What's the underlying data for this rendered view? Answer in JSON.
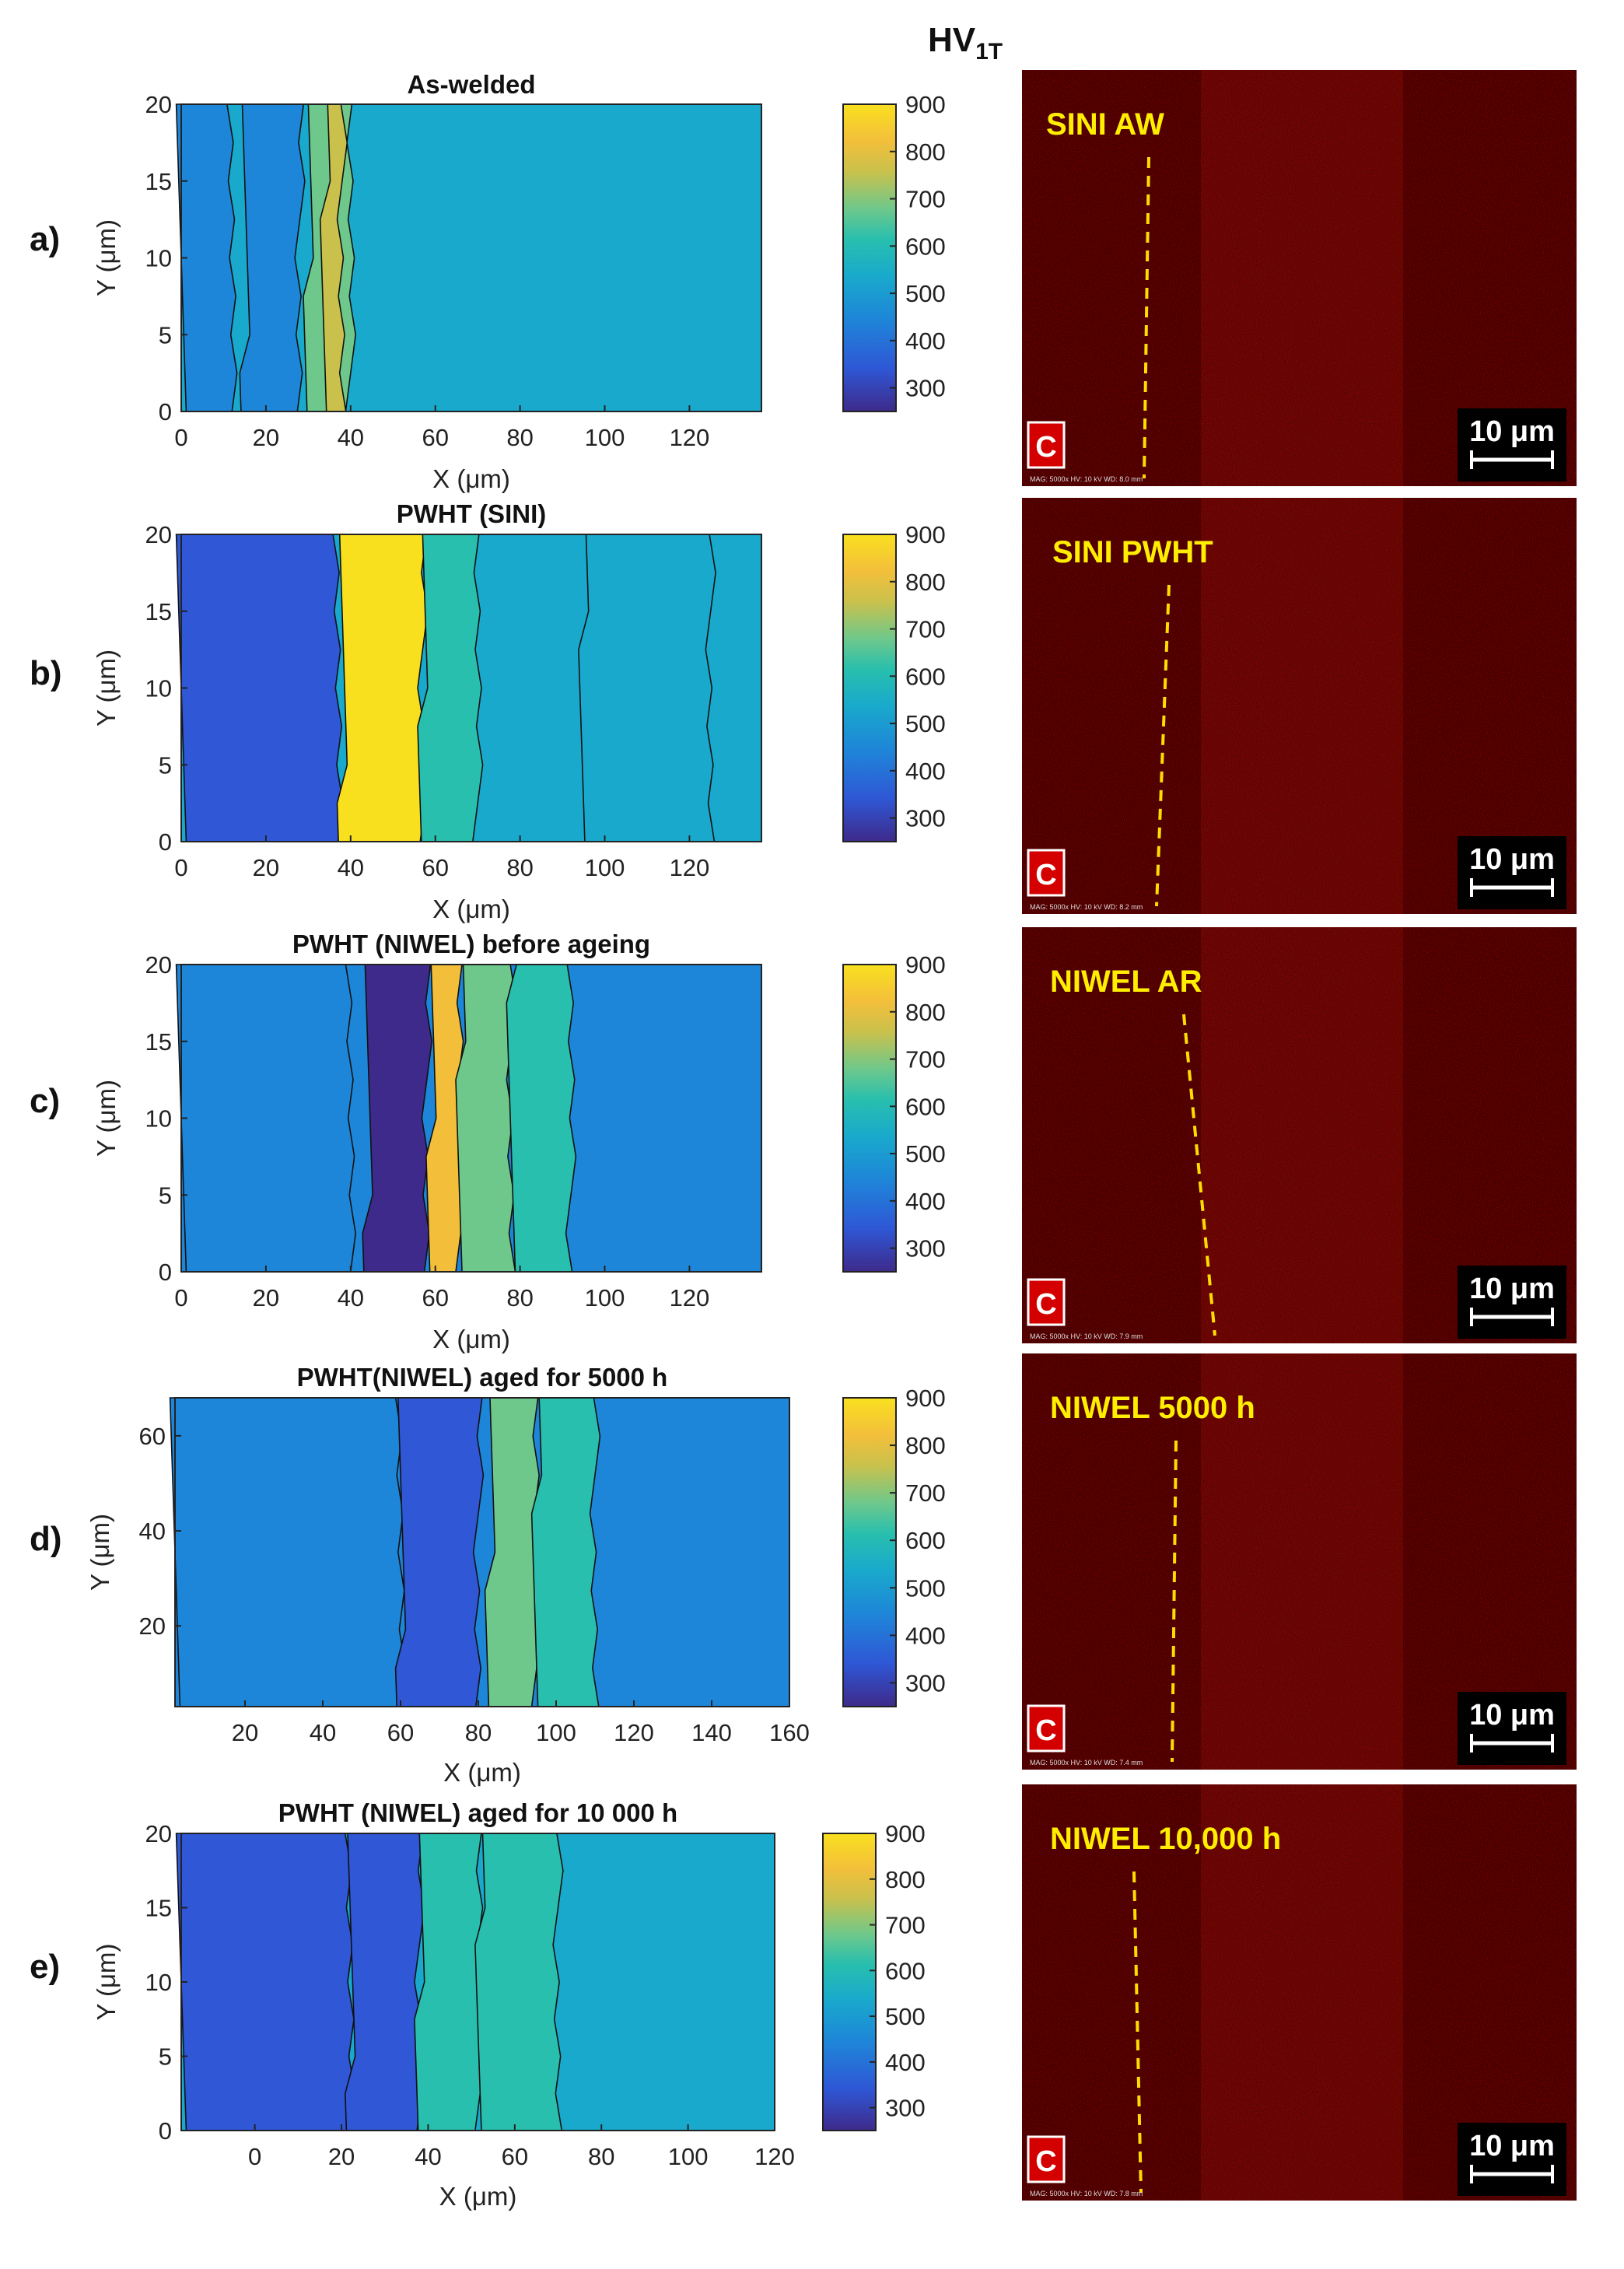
{
  "figure": {
    "colorbar_title": "HV",
    "colorbar_title_sub": "1T",
    "colormap": [
      "#3e2a8a",
      "#2f57d6",
      "#1e86d8",
      "#19a9cc",
      "#28bfae",
      "#6ec88b",
      "#c9c14c",
      "#f3bf3b",
      "#f9e01f"
    ],
    "scale_bar": "10 μm",
    "em_element": "C",
    "em_meta": [
      "MAG: 5000x   HV: 10 kV   WD: 8.0 mm",
      "MAG: 5000x   HV: 10 kV   WD: 8.2 mm",
      "MAG: 5000x   HV: 10 kV   WD: 7.9 mm",
      "MAG: 5000x   HV: 10 kV   WD: 7.4 mm",
      "MAG: 5000x   HV: 10 kV   WD: 7.8 mm"
    ]
  },
  "chart_data": [
    {
      "type": "heatmap",
      "panel": "a)",
      "title": "As-welded",
      "xlabel": "X (μm)",
      "ylabel": "Y (μm)",
      "xlim": [
        0,
        137
      ],
      "ylim": [
        0,
        20
      ],
      "xticks": [
        0,
        20,
        40,
        60,
        80,
        100,
        120
      ],
      "yticks": [
        0,
        5,
        10,
        15,
        20
      ],
      "colorbar": {
        "min": 250,
        "max": 900,
        "ticks": [
          900,
          800,
          700,
          600,
          500,
          400,
          300
        ]
      },
      "base_hardness": 510,
      "bands": [
        {
          "x": [
            0,
            12
          ],
          "hardness": 430
        },
        {
          "x": [
            15,
            28
          ],
          "hardness": 460
        },
        {
          "x": [
            30,
            40
          ],
          "hardness": 620
        },
        {
          "x": [
            34,
            38
          ],
          "hardness": 700
        }
      ],
      "em_label": "SINI AW"
    },
    {
      "type": "heatmap",
      "panel": "b)",
      "title": "PWHT (SINI)",
      "xlabel": "X (μm)",
      "ylabel": "Y (μm)",
      "xlim": [
        0,
        137
      ],
      "ylim": [
        0,
        20
      ],
      "xticks": [
        0,
        20,
        40,
        60,
        80,
        100,
        120
      ],
      "yticks": [
        0,
        5,
        10,
        15,
        20
      ],
      "colorbar": {
        "min": 250,
        "max": 900,
        "ticks": [
          900,
          800,
          700,
          600,
          500,
          400,
          300
        ]
      },
      "base_hardness": 470,
      "bands": [
        {
          "x": [
            0,
            37
          ],
          "hardness": 390
        },
        {
          "x": [
            38,
            57
          ],
          "hardness": 830
        },
        {
          "x": [
            57,
            70
          ],
          "hardness": 590
        },
        {
          "x": [
            95,
            125
          ],
          "hardness": 530
        }
      ],
      "em_label": "SINI PWHT"
    },
    {
      "type": "heatmap",
      "panel": "c)",
      "title": "PWHT (NIWEL) before ageing",
      "xlabel": "X (μm)",
      "ylabel": "Y (μm)",
      "xlim": [
        0,
        137
      ],
      "ylim": [
        0,
        20
      ],
      "xticks": [
        0,
        20,
        40,
        60,
        80,
        100,
        120
      ],
      "yticks": [
        0,
        5,
        10,
        15,
        20
      ],
      "colorbar": {
        "min": 250,
        "max": 900,
        "ticks": [
          900,
          800,
          700,
          600,
          500,
          400,
          300
        ]
      },
      "base_hardness": 460,
      "bands": [
        {
          "x": [
            0,
            40
          ],
          "hardness": 400
        },
        {
          "x": [
            44,
            58
          ],
          "hardness": 320
        },
        {
          "x": [
            59,
            66
          ],
          "hardness": 780
        },
        {
          "x": [
            66,
            78
          ],
          "hardness": 620
        },
        {
          "x": [
            78,
            92
          ],
          "hardness": 540
        }
      ],
      "em_label": "NIWEL AR"
    },
    {
      "type": "heatmap",
      "panel": "d)",
      "title": "PWHT(NIWEL) aged for 5000 h",
      "xlabel": "X (μm)",
      "ylabel": "Y (μm)",
      "xlim": [
        2,
        160
      ],
      "ylim": [
        3,
        68
      ],
      "xticks": [
        20,
        40,
        60,
        80,
        100,
        120,
        140,
        160
      ],
      "yticks": [
        20,
        40,
        60
      ],
      "colorbar": {
        "min": 250,
        "max": 900,
        "ticks": [
          900,
          800,
          700,
          600,
          500,
          400,
          300
        ]
      },
      "base_hardness": 440,
      "bands": [
        {
          "x": [
            2,
            60
          ],
          "hardness": 420
        },
        {
          "x": [
            60,
            80
          ],
          "hardness": 360
        },
        {
          "x": [
            83,
            95
          ],
          "hardness": 680
        },
        {
          "x": [
            95,
            110
          ],
          "hardness": 560
        }
      ],
      "em_label": "NIWEL 5000 h"
    },
    {
      "type": "heatmap",
      "panel": "e)",
      "title": "PWHT (NIWEL) aged for 10 000 h",
      "xlabel": "X (μm)",
      "ylabel": "Y (μm)",
      "xlim": [
        -17,
        120
      ],
      "ylim": [
        0,
        20
      ],
      "xticks": [
        0,
        20,
        40,
        60,
        80,
        100,
        120
      ],
      "yticks": [
        0,
        5,
        10,
        15,
        20
      ],
      "colorbar": {
        "min": 250,
        "max": 900,
        "ticks": [
          900,
          800,
          700,
          600,
          500,
          400,
          300
        ]
      },
      "base_hardness": 490,
      "bands": [
        {
          "x": [
            -17,
            22
          ],
          "hardness": 390
        },
        {
          "x": [
            22,
            38
          ],
          "hardness": 340
        },
        {
          "x": [
            38,
            52
          ],
          "hardness": 540
        },
        {
          "x": [
            52,
            70
          ],
          "hardness": 600
        }
      ],
      "em_label": "NIWEL 10,000 h"
    }
  ]
}
